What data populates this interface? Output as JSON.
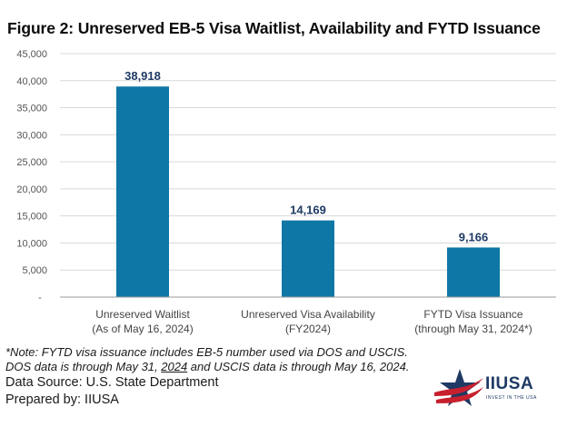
{
  "chart_data": {
    "type": "bar",
    "title": "Figure 2: Unreserved EB-5 Visa Waitlist, Availability and FYTD Issuance",
    "categories": [
      [
        "Unreserved Waitlist",
        "(As of May 16, 2024)"
      ],
      [
        "Unreserved Visa Availability",
        "(FY2024)"
      ],
      [
        "FYTD Visa Issuance",
        "(through May 31, 2024*)"
      ]
    ],
    "values": [
      38918,
      14169,
      9166
    ],
    "data_labels": [
      "38,918",
      "14,169",
      "9,166"
    ],
    "yticks": [
      0,
      5000,
      10000,
      15000,
      20000,
      25000,
      30000,
      35000,
      40000,
      45000
    ],
    "ytick_labels": [
      "-",
      "5,000",
      "10,000",
      "15,000",
      "20,000",
      "25,000",
      "30,000",
      "35,000",
      "40,000",
      "45,000"
    ],
    "ylim": [
      0,
      45000
    ],
    "xlabel": "",
    "ylabel": "",
    "grid": true,
    "bar_color": "#0f77a6",
    "label_color": "#1f3a64"
  },
  "notes": {
    "line1": "*Note: FYTD visa issuance includes EB-5 number used via DOS and USCIS.",
    "line2_pre": "DOS data is through May 31, ",
    "line2_ul": "2024",
    "line2_post": " and USCIS data is through May 16, 2024.",
    "source": "Data Source: U.S. State Department",
    "prepared": "Prepared by: IIUSA"
  },
  "logo": {
    "name": "IIUSA",
    "tagline": "INVEST IN THE USA"
  }
}
